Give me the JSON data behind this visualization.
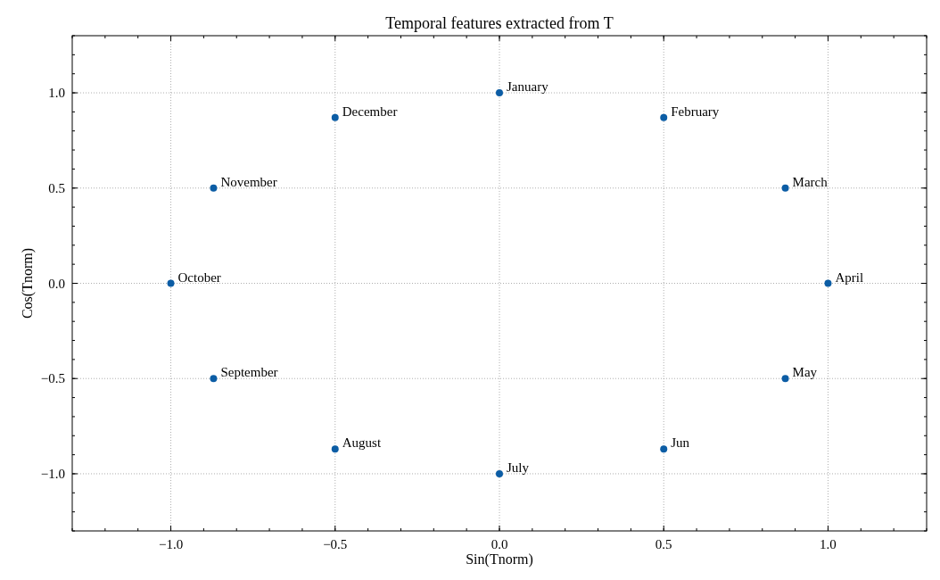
{
  "chart_data": {
    "type": "scatter",
    "title": "Temporal features extracted from T",
    "xlabel": "Sin(Tnorm)",
    "ylabel": "Cos(Tnorm)",
    "x": [
      0,
      0.5,
      0.87,
      1,
      0.87,
      0.5,
      0,
      -0.5,
      -0.87,
      -1,
      -0.87,
      -0.5
    ],
    "series": [
      {
        "color": "#0c5da5",
        "values": [
          1,
          0.87,
          0.5,
          0,
          -0.5,
          -0.87,
          -1,
          -0.87,
          -0.5,
          0,
          0.5,
          0.87
        ]
      }
    ],
    "annotations": [
      {
        "text": "January",
        "x": 0,
        "y": 1
      },
      {
        "text": "February",
        "x": 0.5,
        "y": 0.87
      },
      {
        "text": "March",
        "x": 0.87,
        "y": 0.5
      },
      {
        "text": "April",
        "x": 1,
        "y": 0
      },
      {
        "text": "May",
        "x": 0.87,
        "y": -0.5
      },
      {
        "text": "Jun",
        "x": 0.5,
        "y": -0.87
      },
      {
        "text": "July",
        "x": 0,
        "y": -1
      },
      {
        "text": "August",
        "x": -0.5,
        "y": -0.87
      },
      {
        "text": "September",
        "x": -0.87,
        "y": -0.5
      },
      {
        "text": "October",
        "x": -1,
        "y": 0
      },
      {
        "text": "November",
        "x": -0.87,
        "y": 0.5
      },
      {
        "text": "December",
        "x": -0.5,
        "y": 0.87
      }
    ],
    "xlim": [
      -1.3,
      1.3
    ],
    "ylim": [
      -1.3,
      1.3
    ],
    "xticks": [
      {
        "value": -1,
        "label": "−1.0"
      },
      {
        "value": -0.5,
        "label": "−0.5"
      },
      {
        "value": 0,
        "label": "0.0"
      },
      {
        "value": 0.5,
        "label": "0.5"
      },
      {
        "value": 1,
        "label": "1.0"
      }
    ],
    "yticks": [
      {
        "value": -1,
        "label": "−1.0"
      },
      {
        "value": -0.5,
        "label": "−0.5"
      },
      {
        "value": 0,
        "label": "0.0"
      },
      {
        "value": 0.5,
        "label": "0.5"
      },
      {
        "value": 1,
        "label": "1.0"
      }
    ],
    "grid": true,
    "marker": "circle"
  }
}
